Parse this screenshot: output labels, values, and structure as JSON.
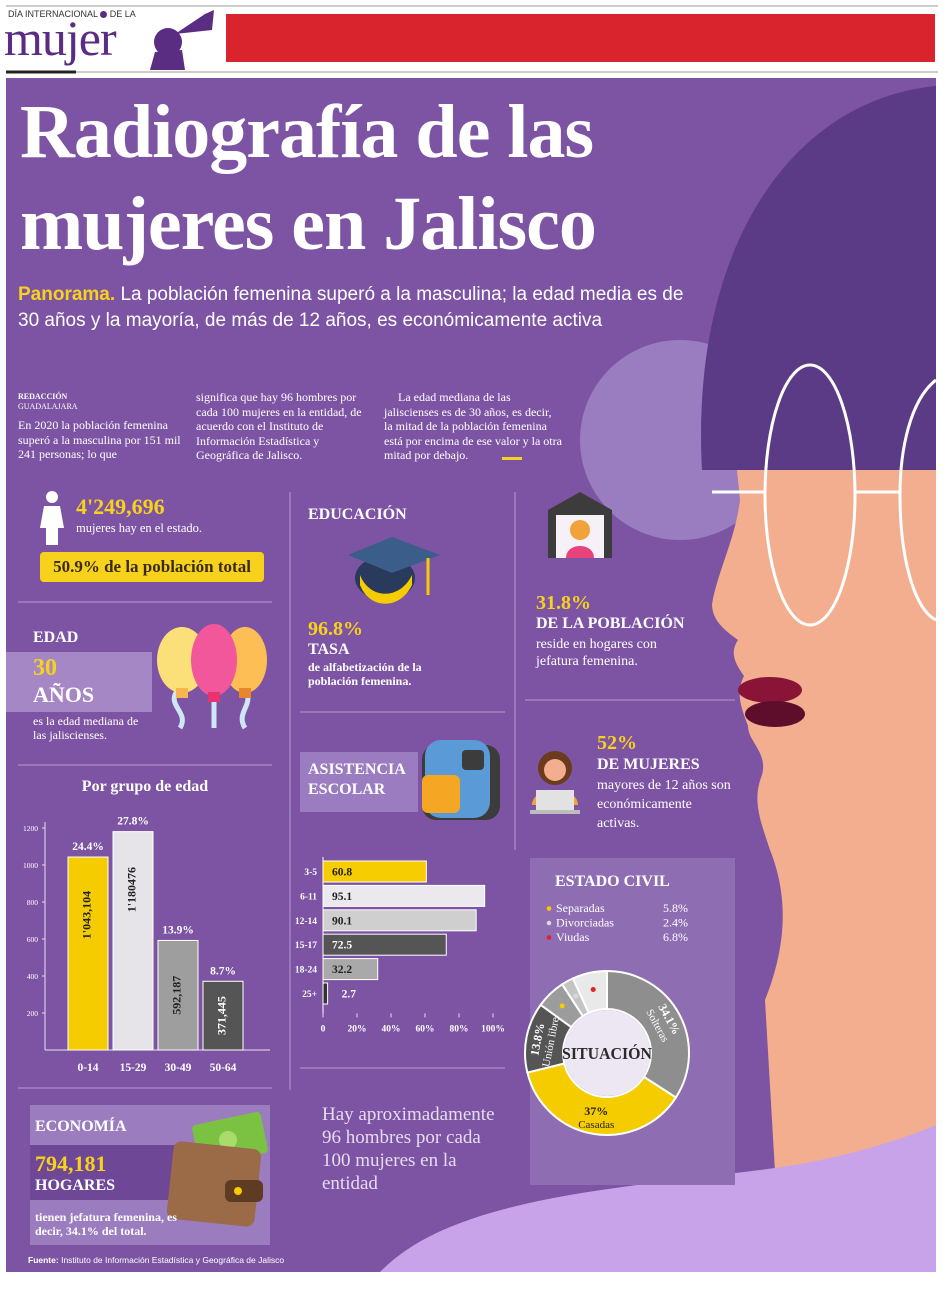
{
  "header": {
    "kicker_1": "DÍA INTERNACIONAL",
    "kicker_2": "DE LA",
    "brand": "mujer"
  },
  "title": [
    "Radiografía de las",
    "mujeres en Jalisco"
  ],
  "subtitle": {
    "lead": "Panorama.",
    "text": "La población femenina superó a la masculina; la edad media es de 30 años y la mayoría, de más de 12 años, es económicamente activa"
  },
  "byline": {
    "author": "REDACCIÓN",
    "place": "GUADALAJARA"
  },
  "body": [
    "En 2020 la población femenina superó a la masculina por 151 mil 241 personas; lo que",
    "significa que hay 96 hombres por cada 100 mujeres en la entidad, de acuerdo con el Instituto de Información Estadística y Geográfica de Jalisco.",
    "La edad mediana de las jaliscienses es de 30 años, es decir, la mitad de la población femenina está por encima de ese valor y la otra mitad por debajo."
  ],
  "population": {
    "value": "4'249,696",
    "text": "mujeres hay en el estado.",
    "share": "50.9% de la población total"
  },
  "age": {
    "label": "EDAD",
    "value": "30",
    "unit": "AÑOS",
    "text": "es la edad mediana de las jaliscienses."
  },
  "education": {
    "label": "EDUCACIÓN",
    "value": "96.8%",
    "title": "TASA",
    "text": "de alfabetización de la población femenina."
  },
  "households": {
    "value": "31.8%",
    "title": "DE LA POBLACIÓN",
    "text": "reside en hogares con jefatura femenina."
  },
  "work": {
    "value": "52%",
    "title": "DE MUJERES",
    "text": "mayores de 12 años son económicamente activas."
  },
  "economy": {
    "label": "ECONOMÍA",
    "value": "794,181",
    "unit": "HOGARES",
    "text": "tienen jefatura femenina, es decir, 34.1% del total."
  },
  "quote": "Hay aproximadamente 96 hombres por cada 100 mujeres en la entidad",
  "source": {
    "label": "Fuente:",
    "text": "Instituto de Información Estadística y Geográfica de Jalisco"
  },
  "chart_data": [
    {
      "type": "bar",
      "title": "Por grupo de edad",
      "categories": [
        "0-14",
        "15-29",
        "30-49",
        "50-64"
      ],
      "values": [
        1043.104,
        1180.476,
        592.187,
        371.445
      ],
      "value_labels": [
        "1'043,104",
        "1'180476",
        "592,187",
        "371,445"
      ],
      "shares": [
        24.4,
        27.8,
        13.9,
        8.7
      ],
      "share_labels": [
        "24.4%",
        "27.8%",
        "13.9%",
        "8.7%"
      ],
      "colors": [
        "#f5cc00",
        "#e6e4e8",
        "#9e9e9e",
        "#555555"
      ],
      "ylim": [
        0,
        1200
      ],
      "yticks": [
        200,
        400,
        600,
        800,
        1000,
        1200
      ]
    },
    {
      "type": "hbar",
      "title": "ASISTENCIA ESCOLAR",
      "categories": [
        "3-5",
        "6-11",
        "12-14",
        "15-17",
        "18-24",
        "25+"
      ],
      "values": [
        60.8,
        95.1,
        90.1,
        72.5,
        32.2,
        2.7
      ],
      "colors": [
        "#f6cd00",
        "#ebe9ee",
        "#cfcfcf",
        "#555555",
        "#a9a9a9",
        "#333333"
      ],
      "xlim": [
        0,
        100
      ],
      "xticks": [
        0,
        {
          "value": 20,
          "label": "20%"
        },
        {
          "value": 40,
          "label": "40%"
        },
        {
          "value": 60,
          "label": "60%"
        },
        {
          "value": 80,
          "label": "80%"
        },
        {
          "value": 100,
          "label": "100%"
        }
      ]
    },
    {
      "type": "donut",
      "title": "ESTADO CIVIL",
      "center_label": "SITUACIÓN",
      "categories": [
        "Solteras",
        "Casadas",
        "Unión libre",
        "Separadas",
        "Divorciadas",
        "Viudas"
      ],
      "values": [
        34.1,
        37,
        13.8,
        5.8,
        2.4,
        6.8
      ],
      "value_labels": [
        "34.1%",
        "37%",
        "13.8%",
        "5.8%",
        "2.4%",
        "6.8%"
      ],
      "colors": [
        "#8e8e8e",
        "#f5cc00",
        "#555555",
        "#9c9c9c",
        "#c4c4c4",
        "#e9e9e9"
      ],
      "dot_colors": [
        null,
        null,
        null,
        "#f5cc00",
        "#d8d8d8",
        "#e0222b"
      ]
    }
  ]
}
